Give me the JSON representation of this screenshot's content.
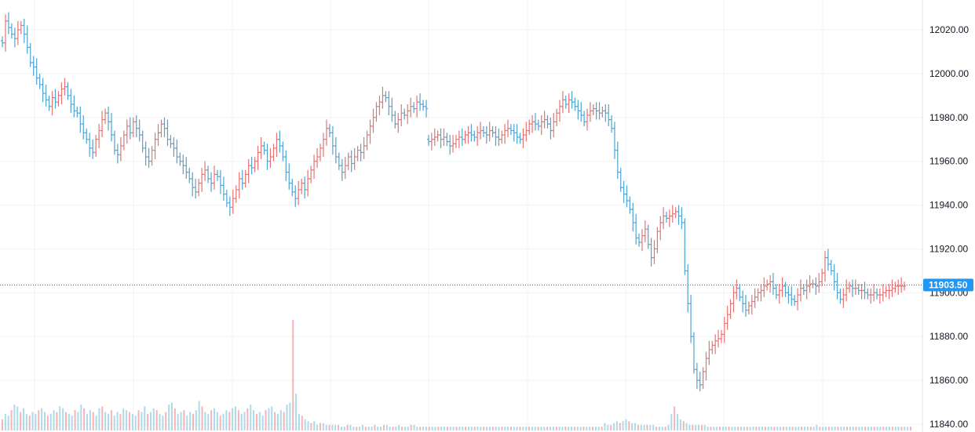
{
  "chart_data": {
    "type": "ohlc",
    "colors": {
      "up": "#ef5350",
      "down": "#26a69a",
      "bar_up": "#e57373",
      "bar_down": "#4fa3d1",
      "grid": "#f0f3fa",
      "axis_text": "#131722",
      "last_price_line": "#2962ff",
      "last_price_badge": "#2196f3"
    },
    "y_axis": {
      "ticks": [
        12020,
        12000,
        11980,
        11960,
        11940,
        11920,
        11900,
        11880,
        11860,
        11840
      ],
      "tick_labels": [
        "12020.00",
        "12000.00",
        "11980.00",
        "11960.00",
        "11940.00",
        "11920.00",
        "11900.00",
        "11880.00",
        "11860.00",
        "11840.00"
      ],
      "ylim": [
        11837,
        12033
      ]
    },
    "last_price": {
      "value": 11903.5,
      "label": "11903.50"
    },
    "grid": true,
    "series_close": [
      12014,
      12024,
      12021,
      12018,
      12016,
      12020,
      12022,
      12018,
      12012,
      12005,
      12003,
      11998,
      11995,
      11991,
      11988,
      11985,
      11989,
      11987,
      11990,
      11993,
      11994,
      11990,
      11986,
      11983,
      11982,
      11977,
      11973,
      11970,
      11966,
      11964,
      11970,
      11974,
      11979,
      11982,
      11978,
      11972,
      11965,
      11963,
      11967,
      11972,
      11976,
      11973,
      11978,
      11975,
      11972,
      11966,
      11962,
      11960,
      11965,
      11970,
      11973,
      11977,
      11975,
      11970,
      11968,
      11966,
      11962,
      11960,
      11958,
      11955,
      11952,
      11948,
      11946,
      11950,
      11954,
      11956,
      11952,
      11950,
      11954,
      11953,
      11949,
      11945,
      11941,
      11939,
      11943,
      11947,
      11952,
      11950,
      11954,
      11958,
      11957,
      11960,
      11964,
      11967,
      11965,
      11960,
      11962,
      11966,
      11970,
      11967,
      11962,
      11955,
      11950,
      11946,
      11943,
      11947,
      11950,
      11947,
      11952,
      11956,
      11960,
      11962,
      11966,
      11970,
      11975,
      11973,
      11967,
      11962,
      11958,
      11955,
      11958,
      11962,
      11959,
      11962,
      11965,
      11964,
      11967,
      11972,
      11976,
      11980,
      11985,
      11987,
      11990,
      11989,
      11985,
      11981,
      11977,
      11979,
      11982,
      11981,
      11983,
      11985,
      11984,
      11987,
      11986,
      11985,
      11984
    ],
    "series_gap_index": 137,
    "series_close_2": [
      11969,
      11970,
      11971,
      11972,
      11970,
      11971,
      11969,
      11967,
      11968,
      11970,
      11971,
      11970,
      11972,
      11973,
      11972,
      11971,
      11973,
      11974,
      11973,
      11972,
      11974,
      11973,
      11971,
      11970,
      11972,
      11974,
      11975,
      11974,
      11973,
      11971,
      11970,
      11972,
      11974,
      11977,
      11978,
      11977,
      11976,
      11978,
      11979,
      11977,
      11974,
      11978,
      11982,
      11985,
      11988,
      11986,
      11988,
      11987,
      11985,
      11983,
      11981,
      11978,
      11981,
      11983,
      11984,
      11983,
      11982,
      11983,
      11982,
      11979,
      11975,
      11965,
      11955,
      11948,
      11945,
      11942,
      11938,
      11932,
      11925,
      11923,
      11926,
      11929,
      11922,
      11916,
      11920,
      11928,
      11932,
      11935,
      11934,
      11935,
      11936,
      11937,
      11935,
      11932,
      11910,
      11895,
      11880,
      11865,
      11860,
      11858,
      11864,
      11870,
      11874,
      11876,
      11878,
      11879,
      11881,
      11886,
      11890,
      11895,
      11900,
      11902,
      11898,
      11895,
      11892,
      11894,
      11896,
      11898,
      11900,
      11901,
      11903,
      11904,
      11905,
      11902,
      11899,
      11901,
      11903,
      11900,
      11899,
      11897,
      11896,
      11899,
      11902,
      11901,
      11903,
      11904,
      11904,
      11903,
      11905,
      11909,
      11916,
      11913,
      11910,
      11905,
      11900,
      11897,
      11899,
      11902,
      11903,
      11902,
      11902,
      11901,
      11901,
      11900,
      11899,
      11899,
      11900,
      11899,
      11899,
      11900,
      11901,
      11901,
      11902,
      11903,
      11903,
      11903,
      11903
    ],
    "volume": [
      6,
      9,
      8,
      11,
      14,
      13,
      10,
      12,
      9,
      8,
      10,
      9,
      11,
      12,
      10,
      8,
      9,
      11,
      10,
      13,
      12,
      10,
      9,
      8,
      11,
      10,
      14,
      12,
      9,
      11,
      10,
      8,
      12,
      13,
      10,
      9,
      11,
      8,
      10,
      9,
      12,
      11,
      10,
      9,
      8,
      11,
      10,
      13,
      9,
      10,
      12,
      11,
      9,
      8,
      10,
      14,
      15,
      12,
      9,
      10,
      11,
      8,
      10,
      9,
      11,
      16,
      13,
      10,
      9,
      11,
      12,
      10,
      8,
      9,
      11,
      10,
      12,
      13,
      11,
      9,
      10,
      12,
      14,
      11,
      9,
      10,
      8,
      11,
      12,
      13,
      10,
      9,
      11,
      10,
      14,
      15,
      60,
      20,
      9,
      8,
      6,
      5,
      4,
      5,
      3,
      4,
      4,
      3,
      3,
      3,
      3,
      3,
      2,
      2,
      3,
      3,
      2,
      2,
      2,
      3,
      2,
      2,
      2,
      3,
      2,
      2,
      3,
      3,
      2,
      2,
      2,
      3,
      2,
      2,
      2,
      3,
      3,
      2,
      2,
      2,
      2,
      2,
      2,
      2,
      2,
      2,
      2,
      2,
      2,
      2,
      2,
      2,
      2,
      2,
      2,
      2,
      2,
      2,
      2,
      2,
      2,
      2,
      2,
      2,
      2,
      2,
      2,
      2,
      2,
      2,
      2,
      2,
      2,
      2,
      2,
      2,
      2,
      2,
      2,
      2,
      2,
      2,
      2,
      2,
      2,
      2,
      2,
      2,
      2,
      2,
      2,
      2,
      2,
      2,
      2,
      2,
      2,
      2,
      2,
      4,
      3,
      3,
      4,
      5,
      4,
      5,
      6,
      5,
      4,
      4,
      3,
      3,
      3,
      3,
      3,
      3,
      2,
      2,
      2,
      2,
      3,
      9,
      13,
      9,
      6,
      5,
      4,
      3,
      3,
      3,
      3,
      3,
      3,
      2,
      2,
      2,
      2,
      2,
      2,
      2,
      2,
      2,
      2,
      2,
      2,
      2,
      2,
      2,
      2,
      2,
      2,
      2,
      2,
      2,
      2,
      2,
      2,
      2,
      2,
      2,
      2,
      2,
      2,
      2,
      2,
      2,
      2,
      2,
      2,
      3,
      2,
      2,
      2,
      2,
      2,
      2,
      2,
      2,
      2,
      2,
      2,
      2,
      2,
      2,
      2,
      2,
      2,
      2,
      2,
      2,
      2,
      2,
      2,
      2,
      2,
      2,
      2,
      2,
      2,
      2,
      2
    ]
  }
}
